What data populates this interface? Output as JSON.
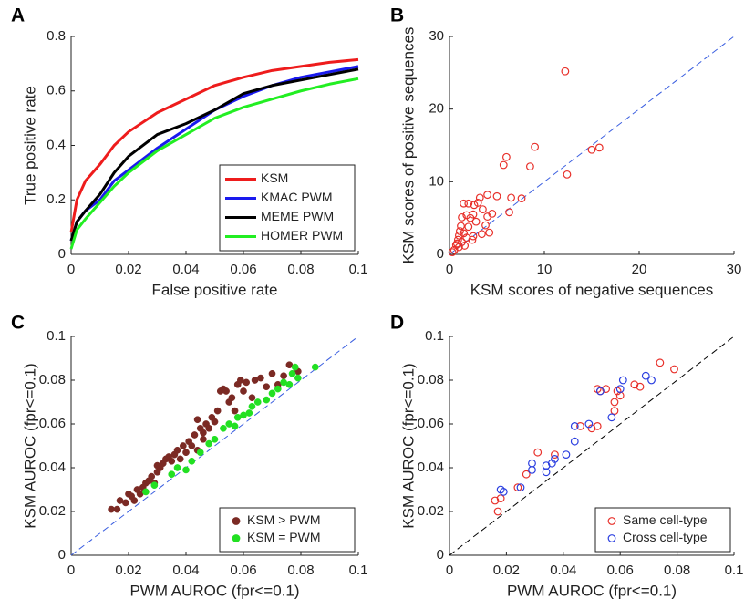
{
  "chart_data": [
    {
      "panel": "A",
      "type": "line",
      "xlabel": "False positive rate",
      "ylabel": "True positive rate",
      "x": [
        0,
        0.002,
        0.005,
        0.01,
        0.015,
        0.02,
        0.03,
        0.04,
        0.05,
        0.06,
        0.07,
        0.08,
        0.09,
        0.1
      ],
      "series": [
        {
          "name": "KSM",
          "color": "#ee1c1c",
          "values": [
            0.08,
            0.2,
            0.27,
            0.33,
            0.4,
            0.45,
            0.52,
            0.57,
            0.62,
            0.65,
            0.675,
            0.69,
            0.705,
            0.715
          ]
        },
        {
          "name": "KMAC PWM",
          "color": "#1a1aee",
          "values": [
            0.05,
            0.12,
            0.16,
            0.2,
            0.27,
            0.31,
            0.39,
            0.46,
            0.53,
            0.58,
            0.62,
            0.65,
            0.67,
            0.69
          ]
        },
        {
          "name": "MEME PWM",
          "color": "#000000",
          "values": [
            0.05,
            0.12,
            0.16,
            0.22,
            0.3,
            0.36,
            0.44,
            0.48,
            0.53,
            0.59,
            0.62,
            0.64,
            0.66,
            0.68
          ]
        },
        {
          "name": "HOMER PWM",
          "color": "#22ee22",
          "values": [
            0.02,
            0.09,
            0.13,
            0.19,
            0.25,
            0.3,
            0.38,
            0.44,
            0.5,
            0.54,
            0.57,
            0.6,
            0.625,
            0.645
          ]
        }
      ],
      "xlim": [
        0,
        0.1
      ],
      "xticks": [
        0,
        0.02,
        0.04,
        0.06,
        0.08,
        0.1
      ],
      "ylim": [
        0,
        0.8
      ],
      "yticks": [
        0,
        0.2,
        0.4,
        0.6,
        0.8
      ],
      "legend": "lower right"
    },
    {
      "panel": "B",
      "type": "scatter",
      "xlabel": "KSM scores of negative sequences",
      "ylabel": "KSM scores of positive sequences",
      "color": "#e8302a",
      "marker": "open",
      "diagonal_color": "#3a5ee0",
      "x": [
        12.2,
        9,
        15.8,
        15,
        12.4,
        6,
        5.7,
        8.5,
        4,
        6.5,
        7.6,
        3.2,
        3,
        1.5,
        2,
        2.6,
        3.5,
        4,
        4.5,
        2.5,
        2.2,
        1.8,
        1.3,
        2.8,
        3.8,
        2,
        1.2,
        4.2,
        3.4,
        2.5,
        1.5,
        1,
        1.8,
        0.9,
        1.3,
        0.7,
        1,
        0.5,
        0.3,
        0.8,
        1.6,
        2.4,
        1.1,
        5,
        6.3
      ],
      "y": [
        25.2,
        14.8,
        14.7,
        14.4,
        11,
        13.4,
        12.3,
        12.1,
        8.2,
        7.8,
        7.7,
        7.8,
        7.1,
        7,
        7,
        6.8,
        6.2,
        5.2,
        5.6,
        5.5,
        5,
        5.4,
        5.1,
        4.5,
        4,
        3.8,
        3.9,
        3,
        2.8,
        2.5,
        2.9,
        2.6,
        2.3,
        2,
        1.7,
        1.3,
        1,
        0.6,
        0.3,
        1.5,
        1.2,
        2,
        3.2,
        8,
        5.8
      ],
      "xlim": [
        0,
        30
      ],
      "xticks": [
        0,
        10,
        20,
        30
      ],
      "ylim": [
        0,
        30
      ],
      "yticks": [
        0,
        10,
        20,
        30
      ]
    },
    {
      "panel": "C",
      "type": "scatter",
      "xlabel": "PWM AUROC (fpr<=0.1)",
      "ylabel": "KSM AUROC (fpr<=0.1)",
      "diagonal_color": "#3a5ee0",
      "series": [
        {
          "name": "KSM > PWM",
          "color": "#7b2a24",
          "marker": "filled",
          "x": [
            0.014,
            0.016,
            0.017,
            0.019,
            0.02,
            0.021,
            0.022,
            0.023,
            0.024,
            0.025,
            0.026,
            0.027,
            0.028,
            0.029,
            0.03,
            0.03,
            0.031,
            0.032,
            0.033,
            0.034,
            0.035,
            0.036,
            0.037,
            0.038,
            0.039,
            0.04,
            0.041,
            0.042,
            0.043,
            0.044,
            0.045,
            0.046,
            0.047,
            0.048,
            0.049,
            0.05,
            0.051,
            0.052,
            0.053,
            0.054,
            0.055,
            0.056,
            0.057,
            0.058,
            0.059,
            0.06,
            0.061,
            0.063,
            0.064,
            0.066,
            0.068,
            0.07,
            0.072,
            0.074,
            0.076,
            0.079,
            0.046,
            0.044
          ],
          "y": [
            0.021,
            0.021,
            0.025,
            0.024,
            0.028,
            0.027,
            0.025,
            0.03,
            0.028,
            0.031,
            0.033,
            0.034,
            0.036,
            0.033,
            0.038,
            0.041,
            0.04,
            0.042,
            0.044,
            0.045,
            0.043,
            0.046,
            0.048,
            0.044,
            0.05,
            0.047,
            0.052,
            0.05,
            0.055,
            0.048,
            0.058,
            0.056,
            0.06,
            0.058,
            0.063,
            0.061,
            0.066,
            0.075,
            0.076,
            0.075,
            0.07,
            0.072,
            0.066,
            0.078,
            0.08,
            0.075,
            0.079,
            0.072,
            0.08,
            0.081,
            0.077,
            0.083,
            0.078,
            0.082,
            0.087,
            0.084,
            0.053,
            0.062
          ]
        },
        {
          "name": "KSM = PWM",
          "color": "#22e022",
          "marker": "filled",
          "x": [
            0.026,
            0.029,
            0.035,
            0.037,
            0.04,
            0.042,
            0.045,
            0.048,
            0.05,
            0.053,
            0.055,
            0.057,
            0.058,
            0.06,
            0.062,
            0.063,
            0.065,
            0.068,
            0.07,
            0.072,
            0.074,
            0.076,
            0.077,
            0.078,
            0.079,
            0.085
          ],
          "y": [
            0.029,
            0.032,
            0.037,
            0.04,
            0.039,
            0.043,
            0.047,
            0.051,
            0.053,
            0.058,
            0.06,
            0.059,
            0.063,
            0.064,
            0.065,
            0.068,
            0.07,
            0.071,
            0.074,
            0.076,
            0.079,
            0.078,
            0.083,
            0.086,
            0.081,
            0.086
          ]
        }
      ],
      "xlim": [
        0,
        0.1
      ],
      "xticks": [
        0,
        0.02,
        0.04,
        0.06,
        0.08,
        0.1
      ],
      "ylim": [
        0,
        0.1
      ],
      "yticks": [
        0,
        0.02,
        0.04,
        0.06,
        0.08,
        0.1
      ],
      "legend": "lower right"
    },
    {
      "panel": "D",
      "type": "scatter",
      "xlabel": "PWM AUROC (fpr<=0.1)",
      "ylabel": "KSM AUROC (fpr<=0.1)",
      "diagonal_color": "#000000",
      "series": [
        {
          "name": "Same cell-type",
          "color": "#e8302a",
          "marker": "open",
          "x": [
            0.016,
            0.017,
            0.018,
            0.024,
            0.027,
            0.031,
            0.037,
            0.046,
            0.05,
            0.052,
            0.052,
            0.053,
            0.058,
            0.058,
            0.059,
            0.065,
            0.067,
            0.074,
            0.079,
            0.055,
            0.06
          ],
          "y": [
            0.025,
            0.02,
            0.026,
            0.031,
            0.037,
            0.047,
            0.046,
            0.059,
            0.058,
            0.059,
            0.076,
            0.075,
            0.066,
            0.07,
            0.075,
            0.078,
            0.077,
            0.088,
            0.085,
            0.076,
            0.073
          ]
        },
        {
          "name": "Cross cell-type",
          "color": "#2a3ee0",
          "marker": "open",
          "x": [
            0.019,
            0.018,
            0.025,
            0.029,
            0.029,
            0.034,
            0.034,
            0.036,
            0.037,
            0.041,
            0.044,
            0.044,
            0.049,
            0.053,
            0.057,
            0.06,
            0.061,
            0.069,
            0.071
          ],
          "y": [
            0.029,
            0.03,
            0.031,
            0.039,
            0.042,
            0.038,
            0.041,
            0.042,
            0.044,
            0.046,
            0.052,
            0.059,
            0.06,
            0.075,
            0.063,
            0.076,
            0.08,
            0.082,
            0.08
          ]
        }
      ],
      "xlim": [
        0,
        0.1
      ],
      "xticks": [
        0,
        0.02,
        0.04,
        0.06,
        0.08,
        0.1
      ],
      "ylim": [
        0,
        0.1
      ],
      "yticks": [
        0,
        0.02,
        0.04,
        0.06,
        0.08,
        0.1
      ],
      "legend": "lower right"
    }
  ]
}
